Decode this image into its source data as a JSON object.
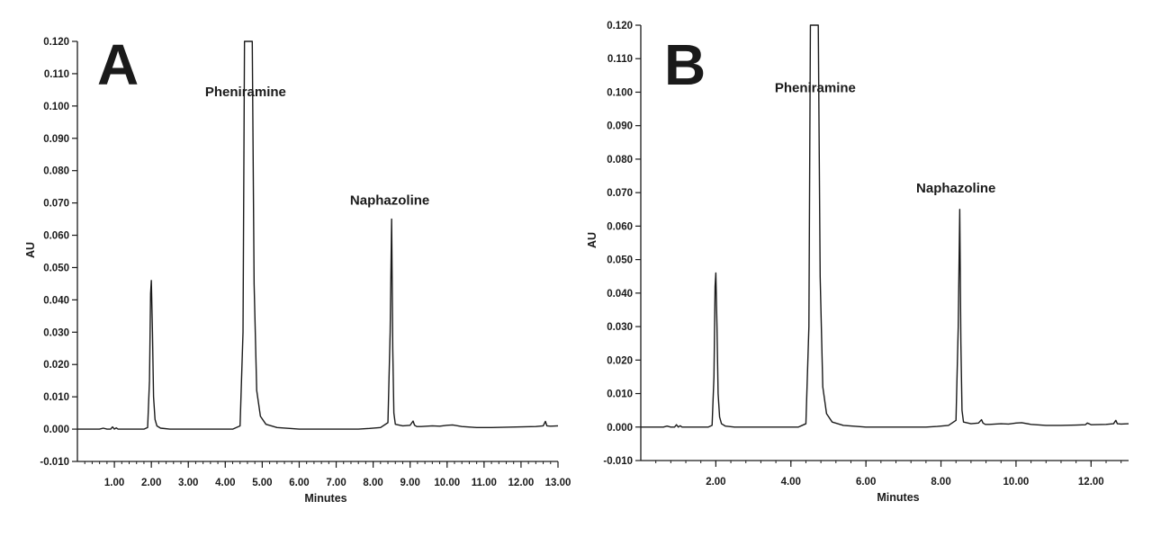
{
  "chart_data": [
    {
      "type": "line",
      "panel_label": "A",
      "xlabel": "Minutes",
      "ylabel": "AU",
      "xlim": [
        0.0,
        13.0
      ],
      "ylim": [
        -0.01,
        0.12
      ],
      "x_ticks": [
        "1.00",
        "2.00",
        "3.00",
        "4.00",
        "5.00",
        "6.00",
        "7.00",
        "8.00",
        "9.00",
        "10.00",
        "11.00",
        "12.00",
        "13.00"
      ],
      "x_tick_values": [
        1,
        2,
        3,
        4,
        5,
        6,
        7,
        8,
        9,
        10,
        11,
        12,
        13
      ],
      "y_ticks": [
        "-0.010",
        "0.000",
        "0.010",
        "0.020",
        "0.030",
        "0.040",
        "0.050",
        "0.060",
        "0.070",
        "0.080",
        "0.090",
        "0.100",
        "0.110",
        "0.120"
      ],
      "y_tick_values": [
        -0.01,
        0,
        0.01,
        0.02,
        0.03,
        0.04,
        0.05,
        0.06,
        0.07,
        0.08,
        0.09,
        0.1,
        0.11,
        0.12
      ],
      "x_minor_step": 0.2,
      "grid": false,
      "annotations": [
        {
          "text": "Pheniramine",
          "x": 4.55,
          "y": 0.103
        },
        {
          "text": "Naphazoline",
          "x": 8.45,
          "y": 0.0695
        }
      ],
      "series": [
        {
          "x": [
            0.0,
            0.6,
            0.7,
            0.8,
            0.9,
            0.95,
            1.0,
            1.05,
            1.1,
            1.2,
            1.5,
            1.8,
            1.9,
            1.95,
            1.98,
            2.0,
            2.03,
            2.06,
            2.1,
            2.15,
            2.25,
            2.5,
            3.5,
            4.2,
            4.4,
            4.48,
            4.52,
            4.55,
            4.7,
            4.73,
            4.78,
            4.85,
            4.95,
            5.1,
            5.4,
            6.0,
            7.0,
            7.6,
            7.9,
            8.2,
            8.4,
            8.46,
            8.5,
            8.53,
            8.56,
            8.6,
            8.8,
            9.0,
            9.08,
            9.12,
            9.18,
            9.3,
            9.6,
            9.8,
            10.0,
            10.15,
            10.4,
            10.8,
            11.2,
            11.6,
            12.0,
            12.4,
            12.6,
            12.66,
            12.7,
            12.8,
            13.0
          ],
          "y": [
            0.0,
            0.0,
            0.0003,
            0.0,
            0.0,
            0.0007,
            0.0,
            0.0004,
            0.0,
            0.0,
            0.0,
            0.0,
            0.0005,
            0.015,
            0.042,
            0.046,
            0.03,
            0.01,
            0.003,
            0.001,
            0.0003,
            0.0,
            0.0,
            0.0,
            0.001,
            0.03,
            0.12,
            0.12,
            0.12,
            0.12,
            0.045,
            0.012,
            0.004,
            0.0015,
            0.0005,
            0.0,
            0.0,
            0.0,
            0.0002,
            0.0005,
            0.002,
            0.03,
            0.065,
            0.025,
            0.005,
            0.0015,
            0.001,
            0.0012,
            0.0025,
            0.0012,
            0.0008,
            0.0008,
            0.001,
            0.0009,
            0.0012,
            0.0013,
            0.0008,
            0.0005,
            0.0005,
            0.0006,
            0.0007,
            0.0008,
            0.001,
            0.0024,
            0.001,
            0.0009,
            0.001
          ]
        }
      ]
    },
    {
      "type": "line",
      "panel_label": "B",
      "xlabel": "Minutes",
      "ylabel": "AU",
      "xlim": [
        0.0,
        13.0
      ],
      "ylim": [
        -0.01,
        0.12
      ],
      "x_ticks": [
        "2.00",
        "4.00",
        "6.00",
        "8.00",
        "10.00",
        "12.00"
      ],
      "x_tick_values": [
        2,
        4,
        6,
        8,
        10,
        12
      ],
      "y_ticks": [
        "-0.010",
        "0.000",
        "0.010",
        "0.020",
        "0.030",
        "0.040",
        "0.050",
        "0.060",
        "0.070",
        "0.080",
        "0.090",
        "0.100",
        "0.110",
        "0.120"
      ],
      "y_tick_values": [
        -0.01,
        0,
        0.01,
        0.02,
        0.03,
        0.04,
        0.05,
        0.06,
        0.07,
        0.08,
        0.09,
        0.1,
        0.11,
        0.12
      ],
      "x_minor_step": 0.4,
      "grid": false,
      "annotations": [
        {
          "text": "Pheniramine",
          "x": 4.65,
          "y": 0.1
        },
        {
          "text": "Naphazoline",
          "x": 8.4,
          "y": 0.07
        }
      ],
      "series": [
        {
          "x": [
            0.0,
            0.6,
            0.7,
            0.8,
            0.9,
            0.95,
            1.0,
            1.05,
            1.1,
            1.2,
            1.5,
            1.8,
            1.9,
            1.95,
            1.98,
            2.0,
            2.03,
            2.06,
            2.1,
            2.15,
            2.25,
            2.5,
            3.5,
            4.2,
            4.4,
            4.48,
            4.52,
            4.55,
            4.7,
            4.73,
            4.78,
            4.85,
            4.95,
            5.1,
            5.4,
            6.0,
            7.0,
            7.6,
            7.9,
            8.2,
            8.4,
            8.46,
            8.5,
            8.53,
            8.56,
            8.6,
            8.8,
            9.0,
            9.08,
            9.12,
            9.18,
            9.3,
            9.6,
            9.8,
            10.0,
            10.15,
            10.4,
            10.8,
            11.2,
            11.6,
            11.85,
            11.9,
            12.0,
            12.4,
            12.6,
            12.66,
            12.7,
            12.8,
            13.0
          ],
          "y": [
            0.0,
            0.0,
            0.0003,
            0.0,
            0.0,
            0.0007,
            0.0,
            0.0004,
            0.0,
            0.0,
            0.0,
            0.0,
            0.0005,
            0.015,
            0.042,
            0.046,
            0.03,
            0.01,
            0.003,
            0.001,
            0.0003,
            0.0,
            0.0,
            0.0,
            0.001,
            0.03,
            0.12,
            0.12,
            0.12,
            0.12,
            0.045,
            0.012,
            0.004,
            0.0015,
            0.0005,
            0.0,
            0.0,
            0.0,
            0.0002,
            0.0005,
            0.002,
            0.03,
            0.065,
            0.025,
            0.005,
            0.0015,
            0.001,
            0.0012,
            0.0022,
            0.0012,
            0.0008,
            0.0008,
            0.001,
            0.0009,
            0.0012,
            0.0013,
            0.0008,
            0.0005,
            0.0005,
            0.0006,
            0.0007,
            0.0012,
            0.0007,
            0.0008,
            0.001,
            0.002,
            0.001,
            0.0009,
            0.001
          ]
        }
      ]
    }
  ]
}
